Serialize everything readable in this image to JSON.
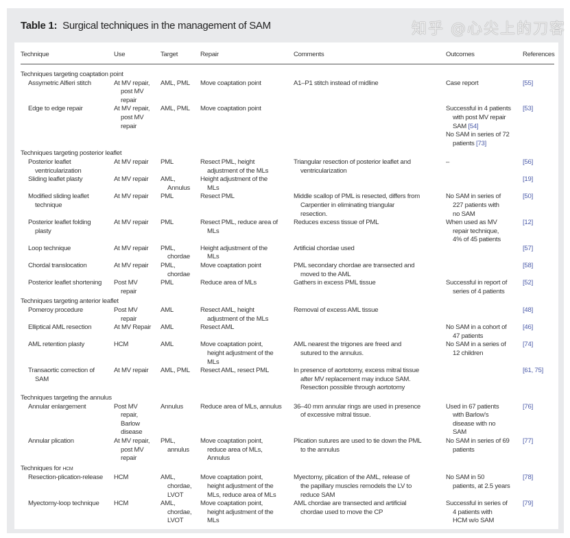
{
  "title": {
    "label": "Table 1:",
    "text": "Surgical techniques in the management of SAM"
  },
  "columns": [
    "Technique",
    "Use",
    "Target",
    "Repair",
    "Comments",
    "Outcomes",
    "References"
  ],
  "sections": [
    {
      "heading": "Techniques targeting coaptation point",
      "heading_sc": "",
      "rows": [
        {
          "technique": "Assymetric Alfieri stitch",
          "use": "At MV repair,\npost MV\nrepair",
          "target": "AML, PML",
          "repair": "Move coaptation point",
          "comments": "A1–P1 stitch instead of midline",
          "outcomes": [
            {
              "text": "Case report",
              "ref": ""
            }
          ],
          "references": "[55]"
        },
        {
          "technique": "Edge to edge repair",
          "use": "At MV repair,\npost MV\nrepair",
          "target": "AML, PML",
          "repair": "Move coaptation point",
          "comments": "",
          "outcomes": [
            {
              "text": "Successful in 4 patients\nwith post MV repair\nSAM ",
              "ref": "[54]"
            },
            {
              "text": "No SAM in series of 72\npatients ",
              "ref": "[73]"
            }
          ],
          "references": "[53]"
        }
      ]
    },
    {
      "heading": "Techniques targeting posterior leaflet",
      "heading_sc": "",
      "rows": [
        {
          "technique": "Posterior leaflet\nventricularization",
          "use": "At MV repair",
          "target": "PML",
          "repair": "Resect PML, height\nadjustment of the MLs",
          "comments": "Triangular resection of posterior leaflet and\nventricularization",
          "outcomes": [
            {
              "text": "–",
              "ref": ""
            }
          ],
          "references": "[56]"
        },
        {
          "technique": "Sliding leaflet plasty",
          "use": "At MV repair",
          "target": "AML,\nAnnulus",
          "repair": "Height adjustment of the\nMLs",
          "comments": "",
          "outcomes": [],
          "references": "[19]"
        },
        {
          "technique": "Modified sliding leaflet\ntechnique",
          "use": "At MV repair",
          "target": "PML",
          "repair": "Resect PML",
          "comments": "Middle scallop of PML is resected, differs from\nCarpentier in eliminating triangular\nresection.",
          "outcomes": [
            {
              "text": "No SAM in series of\n227 patients with\nno SAM",
              "ref": ""
            }
          ],
          "references": "[50]"
        },
        {
          "technique": "Posterior leaflet folding\nplasty",
          "use": "At MV repair",
          "target": "PML",
          "repair": "Resect PML, reduce area of\nMLs",
          "comments": "Reduces excess tissue of PML",
          "outcomes": [
            {
              "text": "When used as MV\nrepair technique,\n4% of 45 patients",
              "ref": ""
            }
          ],
          "references": "[12]"
        },
        {
          "technique": "Loop technique",
          "use": "At MV repair",
          "target": "PML,\nchordae",
          "repair": "Height adjustment of the\nMLs",
          "comments": "Artificial chordae used",
          "outcomes": [],
          "references": "[57]"
        },
        {
          "technique": "Chordal translocation",
          "use": "At MV repair",
          "target": "PML,\nchordae",
          "repair": "Move coaptation point",
          "comments": "PML secondary chordae are transected and\nmoved to the AML",
          "outcomes": [],
          "references": "[58]"
        },
        {
          "technique": "Posterior leaflet shortening",
          "use": "Post MV\nrepair",
          "target": "PML",
          "repair": "Reduce area of MLs",
          "comments": "Gathers in excess PML tissue",
          "outcomes": [
            {
              "text": "Successful in report of\nseries of 4 patients",
              "ref": ""
            }
          ],
          "references": "[52]"
        }
      ]
    },
    {
      "heading": "Techniques targeting anterior leaflet",
      "heading_sc": "",
      "rows": [
        {
          "technique": "Pomeroy procedure",
          "use": "Post MV\nrepair",
          "target": "AML",
          "repair": "Resect AML, height\nadjustment of the MLs",
          "comments": "Removal of excess AML tissue",
          "outcomes": [],
          "references": "[48]"
        },
        {
          "technique": "Elliptical AML resection",
          "use": "At MV Repair",
          "target": "AML",
          "repair": "Resect AML",
          "comments": "",
          "outcomes": [
            {
              "text": "No SAM in a cohort of\n47 patients",
              "ref": ""
            }
          ],
          "references": "[46]"
        },
        {
          "technique": "AML retention plasty",
          "use": "HCM",
          "target": "AML",
          "repair": "Move coaptation point,\nheight adjustment of the\nMLs",
          "comments": "AML nearest the trigones are freed and\nsutured to the annulus.",
          "outcomes": [
            {
              "text": "No SAM in a series of\n12 children",
              "ref": ""
            }
          ],
          "references": "[74]"
        },
        {
          "technique": "Transaortic correction of\nSAM",
          "use": "At MV repair",
          "target": "AML, PML",
          "repair": "Resect AML, resect PML",
          "comments": "In presence of aortotomy, excess mitral tissue\nafter MV replacement may induce SAM.\nResection possible through aortotomy",
          "outcomes": [],
          "references": "[61, 75]"
        }
      ]
    },
    {
      "heading": "Techniques targeting the annulus",
      "heading_sc": "",
      "rows": [
        {
          "technique": "Annular enlargement",
          "use": "Post MV\nrepair,\nBarlow\ndisease",
          "target": "Annulus",
          "repair": "Reduce area of MLs, annulus",
          "comments": "36–40 mm annular rings are used in presence\nof excessive mitral tissue.",
          "outcomes": [
            {
              "text": "Used in 67 patients\nwith Barlow's\ndisease with no\nSAM",
              "ref": ""
            }
          ],
          "references": "[76]"
        },
        {
          "technique": "Annular plication",
          "use": "At MV repair,\npost MV\nrepair",
          "target": "PML,\nannulus",
          "repair": "Move coaptation point,\nreduce area of MLs,\nAnnulus",
          "comments": "Plication sutures are used to tie down the PML\nto the annulus",
          "outcomes": [
            {
              "text": "No SAM in series of 69\npatients",
              "ref": ""
            }
          ],
          "references": "[77]"
        }
      ]
    },
    {
      "heading": "Techniques for ",
      "heading_sc": "HCM",
      "rows": [
        {
          "technique": "Resection-plication-release",
          "use": "HCM",
          "target": "AML,\nchordae,\nLVOT",
          "repair": "Move coaptation point,\nheight adjustment of the\nMLs, reduce area of MLs",
          "comments": "Myectomy, plication of the AML, release of\nthe papillary muscles remodels the LV to\nreduce SAM",
          "outcomes": [
            {
              "text": "No SAM in 50\npatients, at 2.5 years",
              "ref": ""
            }
          ],
          "references": "[78]"
        },
        {
          "technique": "Myectomy-loop technique",
          "use": "HCM",
          "target": "AML,\nchordae,\nLVOT",
          "repair": "Move coaptation point,\nheight adjustment of the\nMLs",
          "comments": "AML chordae are transected and artificial\nchordae used to move the CP",
          "outcomes": [
            {
              "text": "Successful in series of\n4 patients with\nHCM w/o SAM",
              "ref": ""
            }
          ],
          "references": "[79]"
        }
      ]
    }
  ],
  "watermark": "知乎 @心尖上的刀客",
  "colors": {
    "panel": "#e9eaec",
    "link": "#4a5aa8"
  }
}
